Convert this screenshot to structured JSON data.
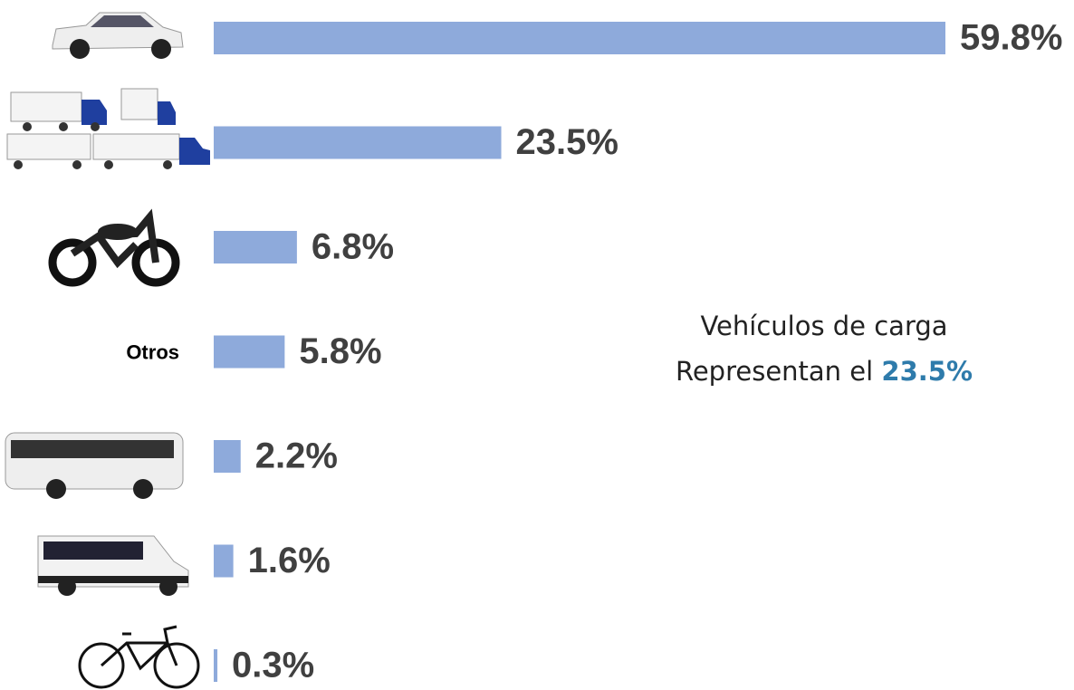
{
  "chart_data": {
    "type": "bar",
    "orientation": "horizontal",
    "categories": [
      null,
      null,
      null,
      "Otros",
      null,
      null,
      null
    ],
    "values": [
      59.8,
      23.5,
      6.8,
      5.8,
      2.2,
      1.6,
      0.3
    ],
    "value_labels": [
      "59.8%",
      "23.5%",
      "6.8%",
      "5.8%",
      "2.2%",
      "1.6%",
      "0.3%"
    ],
    "color": "#8eaadb",
    "annotation": {
      "line1": "Vehículos de carga",
      "line2": "Representan el",
      "highlight": "23.5%",
      "highlight_color": "#2e7bab"
    }
  }
}
